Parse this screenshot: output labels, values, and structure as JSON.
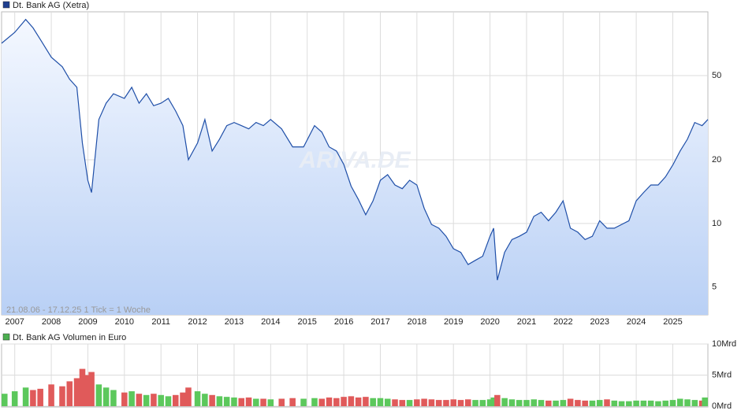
{
  "chart_data": [
    {
      "type": "line",
      "title": "Dt. Bank AG (Xetra)",
      "color": "#1f4fa8",
      "legend_color": "#1f3f8f",
      "note": "21.08.06 - 17.12.25   1 Tick = 1 Woche",
      "watermark": "ARIVA.DE",
      "log_scale": true,
      "grid": true,
      "x": [
        2006.64,
        2007.0,
        2007.3,
        2007.5,
        2007.7,
        2008.0,
        2008.3,
        2008.5,
        2008.7,
        2008.85,
        2009.0,
        2009.1,
        2009.3,
        2009.5,
        2009.7,
        2010.0,
        2010.2,
        2010.4,
        2010.6,
        2010.8,
        2011.0,
        2011.2,
        2011.4,
        2011.6,
        2011.75,
        2012.0,
        2012.2,
        2012.4,
        2012.6,
        2012.8,
        2013.0,
        2013.2,
        2013.4,
        2013.6,
        2013.8,
        2014.0,
        2014.3,
        2014.6,
        2014.9,
        2015.2,
        2015.4,
        2015.6,
        2015.8,
        2016.0,
        2016.2,
        2016.4,
        2016.6,
        2016.8,
        2017.0,
        2017.2,
        2017.4,
        2017.6,
        2017.8,
        2018.0,
        2018.2,
        2018.4,
        2018.6,
        2018.8,
        2019.0,
        2019.2,
        2019.4,
        2019.6,
        2019.8,
        2020.0,
        2020.1,
        2020.2,
        2020.4,
        2020.6,
        2020.8,
        2021.0,
        2021.2,
        2021.4,
        2021.6,
        2021.8,
        2022.0,
        2022.2,
        2022.4,
        2022.6,
        2022.8,
        2023.0,
        2023.2,
        2023.4,
        2023.6,
        2023.8,
        2024.0,
        2024.2,
        2024.4,
        2024.6,
        2024.8,
        2025.0,
        2025.2,
        2025.4,
        2025.6,
        2025.8,
        2025.96
      ],
      "values": [
        71,
        80,
        92,
        84,
        74,
        61,
        55,
        48,
        44,
        24,
        16,
        14,
        31,
        37,
        41,
        39,
        44,
        37,
        41,
        36,
        37,
        39,
        34,
        29,
        20,
        24,
        31,
        22,
        25,
        29,
        30,
        29,
        28,
        30,
        29,
        31,
        28,
        23,
        23,
        29,
        27,
        23,
        22,
        19,
        15,
        13,
        11,
        12.8,
        16,
        17,
        15.2,
        14.6,
        16,
        15.2,
        11.8,
        9.9,
        9.5,
        8.7,
        7.6,
        7.3,
        6.4,
        6.7,
        7.0,
        8.7,
        9.5,
        5.4,
        7.3,
        8.4,
        8.7,
        9.1,
        10.8,
        11.3,
        10.3,
        11.3,
        12.8,
        9.5,
        9.1,
        8.4,
        8.7,
        10.3,
        9.5,
        9.5,
        9.9,
        10.3,
        12.8,
        14.0,
        15.2,
        15.2,
        16.6,
        18.9,
        22,
        25,
        30,
        29,
        31
      ],
      "xlim": [
        2006.64,
        2025.96
      ],
      "xticks": [
        2007,
        2008,
        2009,
        2010,
        2011,
        2012,
        2013,
        2014,
        2015,
        2016,
        2017,
        2018,
        2019,
        2020,
        2021,
        2022,
        2023,
        2024,
        2025
      ],
      "ylim": [
        3.7,
        100
      ],
      "yticks": [
        5,
        10,
        20,
        50
      ]
    },
    {
      "type": "bar",
      "title": "Dt. Bank AG Volumen in Euro",
      "legend_color": "#4caf50",
      "up_color": "#5cc85c",
      "down_color": "#e05a5a",
      "grid": true,
      "values": [
        2.0,
        2.4,
        3.0,
        2.6,
        2.8,
        3.5,
        3.2,
        4.0,
        4.5,
        6.0,
        5.0,
        5.5,
        3.5,
        3.0,
        2.6,
        2.2,
        2.4,
        2.0,
        1.8,
        2.0,
        1.8,
        1.6,
        1.8,
        2.2,
        3.0,
        2.4,
        2.0,
        1.8,
        1.6,
        1.5,
        1.4,
        1.3,
        1.4,
        1.2,
        1.2,
        1.1,
        1.2,
        1.3,
        1.2,
        1.3,
        1.2,
        1.4,
        1.3,
        1.5,
        1.6,
        1.4,
        1.5,
        1.3,
        1.3,
        1.2,
        1.1,
        1.0,
        1.0,
        1.1,
        1.2,
        1.1,
        1.0,
        1.0,
        1.1,
        1.0,
        1.1,
        1.0,
        1.0,
        1.1,
        1.4,
        1.8,
        1.3,
        1.1,
        1.0,
        1.0,
        1.1,
        1.0,
        0.9,
        0.9,
        1.0,
        1.2,
        1.0,
        0.9,
        0.9,
        1.0,
        1.1,
        0.9,
        0.8,
        0.8,
        0.9,
        0.9,
        0.9,
        0.8,
        0.9,
        1.0,
        1.2,
        1.1,
        1.0,
        0.9,
        1.4
      ],
      "ylim": [
        0,
        10
      ],
      "yticks": [
        {
          "value": 0,
          "label": "0Mrd"
        },
        {
          "value": 5,
          "label": "5Mrd"
        },
        {
          "value": 10,
          "label": "10Mrd"
        }
      ]
    }
  ]
}
